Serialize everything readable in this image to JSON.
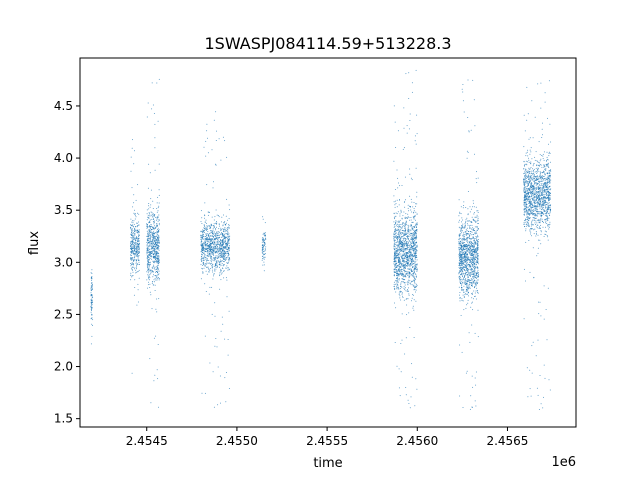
{
  "chart_data": {
    "type": "scatter",
    "title": "1SWASPJ084114.59+513228.3",
    "xlabel": "time",
    "ylabel": "flux",
    "x_offset_label": "1e6",
    "xlim": [
      2454130,
      2456880
    ],
    "ylim": [
      1.42,
      4.96
    ],
    "x_ticks": [
      2454500,
      2455000,
      2455500,
      2456000,
      2456500
    ],
    "x_tick_labels": [
      "2.4545",
      "2.4550",
      "2.4555",
      "2.4560",
      "2.4565"
    ],
    "y_ticks": [
      1.5,
      2.0,
      2.5,
      3.0,
      3.5,
      4.0,
      4.5
    ],
    "y_tick_labels": [
      "1.5",
      "2.0",
      "2.5",
      "3.0",
      "3.5",
      "4.0",
      "4.5"
    ],
    "grid": false,
    "legend": "none",
    "marker_color": "#1f77b4",
    "clusters": [
      {
        "x_range": [
          2454190,
          2454200
        ],
        "center": 2.65,
        "spread": 0.25,
        "y_range": [
          2.1,
          3.25
        ]
      },
      {
        "x_range": [
          2454410,
          2454460
        ],
        "center": 3.15,
        "spread": 0.25,
        "y_range": [
          1.85,
          4.25
        ]
      },
      {
        "x_range": [
          2454500,
          2454570
        ],
        "center": 3.15,
        "spread": 0.32,
        "y_range": [
          1.6,
          4.8
        ]
      },
      {
        "x_range": [
          2454800,
          2454960
        ],
        "center": 3.15,
        "spread": 0.22,
        "y_range": [
          1.6,
          4.45
        ]
      },
      {
        "x_range": [
          2455140,
          2455160
        ],
        "center": 3.15,
        "spread": 0.12,
        "y_range": [
          2.85,
          3.45
        ]
      },
      {
        "x_range": [
          2455870,
          2456000
        ],
        "center": 3.1,
        "spread": 0.35,
        "y_range": [
          1.55,
          4.85
        ]
      },
      {
        "x_range": [
          2456230,
          2456340
        ],
        "center": 3.05,
        "spread": 0.35,
        "y_range": [
          1.55,
          4.85
        ]
      },
      {
        "x_range": [
          2456590,
          2456740
        ],
        "center": 3.65,
        "spread": 0.3,
        "y_range": [
          1.55,
          4.75
        ]
      }
    ]
  }
}
